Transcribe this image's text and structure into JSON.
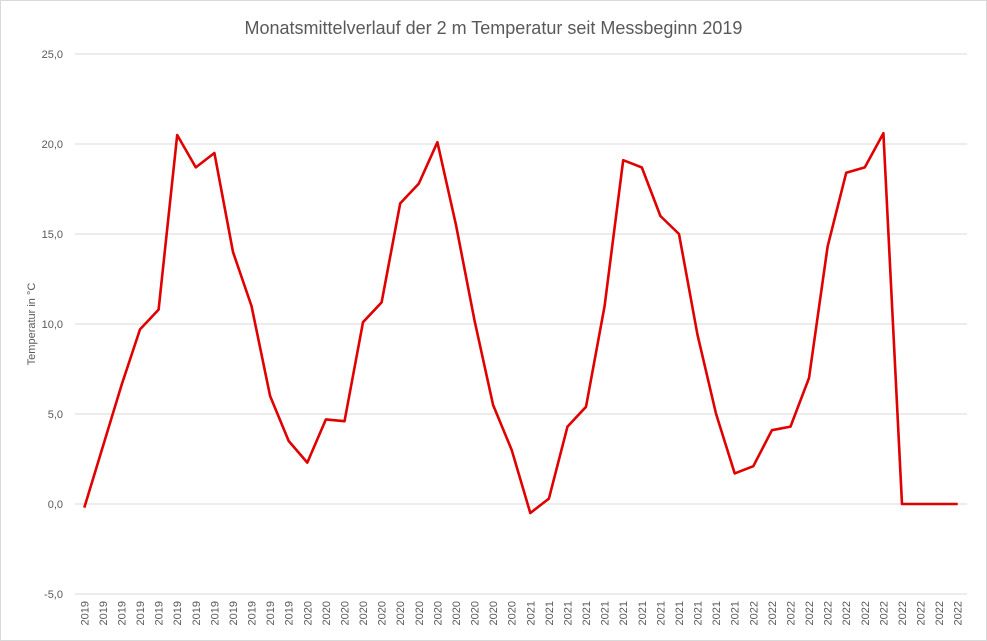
{
  "chart_data": {
    "type": "line",
    "title": "Monatsmittelverlauf der 2 m Temperatur seit Messbeginn 2019",
    "xlabel": "",
    "ylabel": "Temperatur in °C",
    "ylim": [
      -5.0,
      25.0
    ],
    "y_ticks": [
      "-5,0",
      "0,0",
      "5,0",
      "10,0",
      "15,0",
      "20,0",
      "25,0"
    ],
    "grid": "horizontal",
    "legend": "none",
    "line_color": "#e00000",
    "categories": [
      "2019",
      "2019",
      "2019",
      "2019",
      "2019",
      "2019",
      "2019",
      "2019",
      "2019",
      "2019",
      "2019",
      "2019",
      "2020",
      "2020",
      "2020",
      "2020",
      "2020",
      "2020",
      "2020",
      "2020",
      "2020",
      "2020",
      "2020",
      "2020",
      "2021",
      "2021",
      "2021",
      "2021",
      "2021",
      "2021",
      "2021",
      "2021",
      "2021",
      "2021",
      "2021",
      "2021",
      "2022",
      "2022",
      "2022",
      "2022",
      "2022",
      "2022",
      "2022",
      "2022",
      "2022",
      "2022",
      "2022",
      "2022"
    ],
    "values": [
      -0.2,
      3.2,
      6.6,
      9.7,
      10.8,
      20.5,
      18.7,
      19.5,
      14.0,
      11.0,
      6.0,
      3.5,
      2.3,
      4.7,
      4.6,
      10.1,
      11.2,
      16.7,
      17.8,
      20.1,
      15.5,
      10.2,
      5.5,
      3.0,
      -0.5,
      0.3,
      4.3,
      5.4,
      11.0,
      19.1,
      18.7,
      16.0,
      15.0,
      9.4,
      5.0,
      1.7,
      2.1,
      4.1,
      4.3,
      7.0,
      14.3,
      18.4,
      18.7,
      20.6,
      0.0,
      0.0,
      0.0,
      0.0
    ]
  }
}
